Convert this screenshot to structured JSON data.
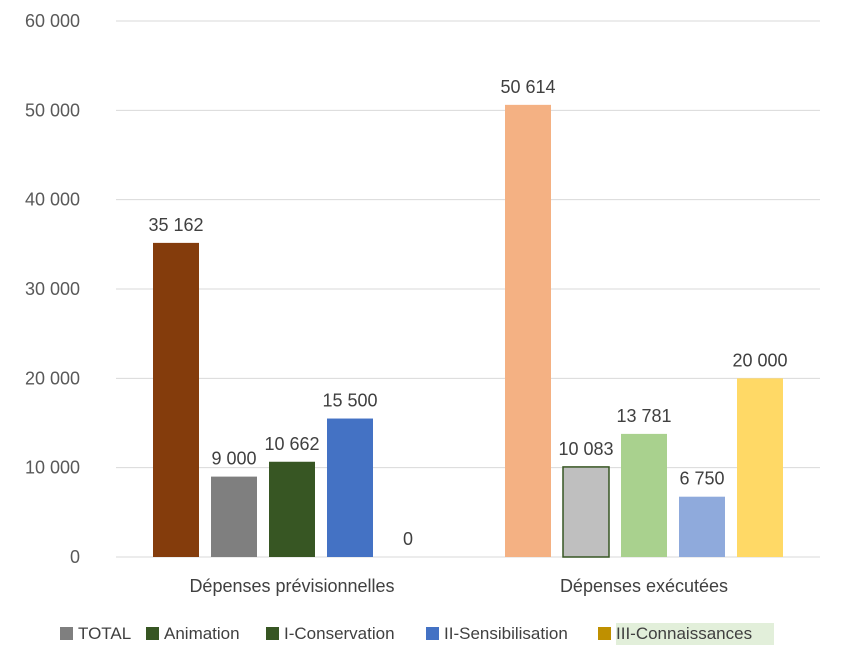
{
  "chart_data": {
    "type": "bar",
    "categories": [
      "Dépenses prévisionnelles",
      "Dépenses exécutées"
    ],
    "ylim": [
      0,
      60000
    ],
    "yticks": [
      0,
      10000,
      20000,
      30000,
      40000,
      50000,
      60000
    ],
    "ytick_labels": [
      "0",
      "10 000",
      "20 000",
      "30 000",
      "40 000",
      "50 000",
      "60 000"
    ],
    "grid": true,
    "legend_position": "bottom",
    "bar_groups": [
      {
        "category": "Dépenses prévisionnelles",
        "bars": [
          {
            "value": 35162,
            "label": "35 162",
            "color": "#843C0C"
          },
          {
            "value": 9000,
            "label": "9 000",
            "color": "#7F7F7F"
          },
          {
            "value": 10662,
            "label": "10 662",
            "color": "#375623"
          },
          {
            "value": 15500,
            "label": "15 500",
            "color": "#4472C4"
          },
          {
            "value": 0,
            "label": "0",
            "color": "#BF9000"
          }
        ]
      },
      {
        "category": "Dépenses exécutées",
        "bars": [
          {
            "value": 50614,
            "label": "50 614",
            "color": "#F4B183"
          },
          {
            "value": 10083,
            "label": "10 083",
            "color": "#BFBFBF",
            "stroke": "#375623"
          },
          {
            "value": 13781,
            "label": "13 781",
            "color": "#A9D18E"
          },
          {
            "value": 6750,
            "label": "6 750",
            "color": "#8FAADC"
          },
          {
            "value": 20000,
            "label": "20 000",
            "color": "#FFD966"
          }
        ]
      }
    ],
    "legend": [
      {
        "name": "TOTAL",
        "color": "#7F7F7F"
      },
      {
        "name": "Animation",
        "color": "#375623"
      },
      {
        "name": "I-Conservation",
        "color": "#375623"
      },
      {
        "name": "II-Sensibilisation",
        "color": "#4472C4"
      },
      {
        "name": "III-Connaissances",
        "color": "#BF9000"
      }
    ],
    "legend_highlight_color": "#E2EFDA",
    "gridline_color": "#D9D9D9"
  }
}
